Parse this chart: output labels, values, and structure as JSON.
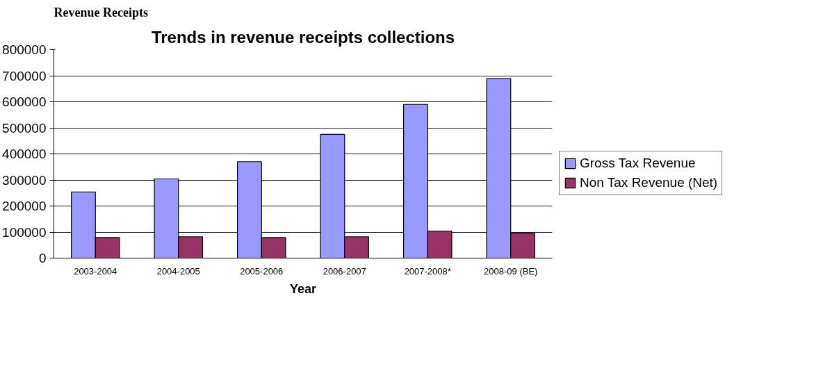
{
  "chart_data": {
    "type": "bar",
    "title": "Trends in revenue receipts collections",
    "xlabel": "Year",
    "annotations": [
      "Revenue Receipts"
    ],
    "categories": [
      "2003-2004",
      "2004-2005",
      "2005-2006",
      "2006-2007",
      "2007-2008*",
      "2008-09 (BE)"
    ],
    "series": [
      {
        "name": "Gross Tax Revenue",
        "color": "#9999ff",
        "values": [
          254000,
          304000,
          370000,
          475000,
          590000,
          689000
        ]
      },
      {
        "name": "Non Tax Revenue (Net)",
        "color": "#993366",
        "values": [
          79000,
          82000,
          79000,
          82000,
          104000,
          96000
        ]
      }
    ],
    "ylim": [
      0,
      800000
    ],
    "yticks": [
      0,
      100000,
      200000,
      300000,
      400000,
      500000,
      600000,
      700000,
      800000
    ],
    "grid": "y",
    "legend": "right"
  }
}
